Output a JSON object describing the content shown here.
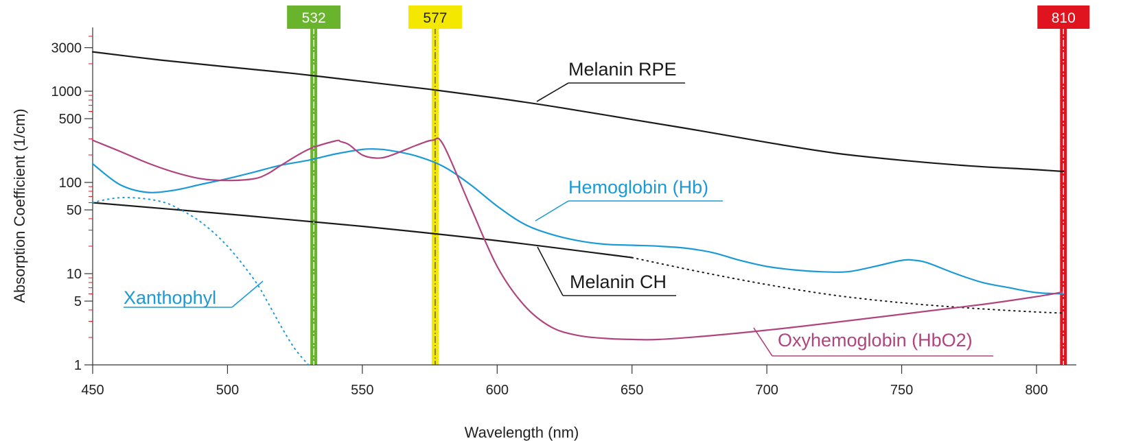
{
  "chart_data": {
    "type": "line",
    "xlabel": "Wavelength (nm)",
    "ylabel": "Absorption Coefficient (1/cm)",
    "x_scale": "linear",
    "y_scale": "log",
    "xlim": [
      450,
      810
    ],
    "ylim": [
      1,
      4500
    ],
    "x_ticks": [
      450,
      500,
      550,
      600,
      650,
      700,
      750,
      800
    ],
    "y_ticks": [
      1,
      5,
      10,
      50,
      100,
      500,
      1000,
      3000
    ],
    "grid": false,
    "series": [
      {
        "name": "Melanin RPE",
        "color": "#1a1a1a",
        "style": "solid",
        "x": [
          450,
          475,
          500,
          525,
          550,
          575,
          600,
          625,
          650,
          675,
          700,
          725,
          750,
          775,
          800,
          810
        ],
        "y": [
          2700,
          2200,
          1850,
          1560,
          1280,
          1050,
          840,
          650,
          490,
          370,
          275,
          210,
          175,
          152,
          138,
          132
        ]
      },
      {
        "name": "Melanin CH",
        "color": "#1a1a1a",
        "style": "solid",
        "x": [
          450,
          500,
          550,
          600,
          650
        ],
        "y": [
          60,
          45,
          33,
          23,
          15
        ]
      },
      {
        "name": "",
        "color": "#1a1a1a",
        "style": "dotted",
        "x": [
          650,
          675,
          700,
          725,
          750,
          775,
          800,
          810
        ],
        "y": [
          15,
          10.5,
          7.6,
          5.8,
          4.8,
          4.2,
          3.8,
          3.7
        ]
      },
      {
        "name": "Hemoglobin (Hb)",
        "color": "#1b9ad6",
        "style": "solid",
        "x": [
          450,
          460,
          470,
          480,
          490,
          500,
          510,
          520,
          530,
          540,
          550,
          555,
          560,
          570,
          580,
          590,
          600,
          610,
          620,
          630,
          640,
          650,
          660,
          670,
          680,
          690,
          700,
          710,
          720,
          730,
          740,
          750,
          755,
          760,
          770,
          780,
          790,
          800,
          810
        ],
        "y": [
          160,
          95,
          78,
          82,
          95,
          110,
          130,
          155,
          175,
          205,
          230,
          232,
          225,
          195,
          150,
          95,
          55,
          35,
          27,
          23,
          21,
          20.5,
          20,
          19,
          17,
          14,
          12,
          11,
          10.5,
          10.5,
          12,
          14,
          14,
          13,
          10,
          8,
          7,
          6.2,
          6
        ]
      },
      {
        "name": "Oxyhemoglobin (HbO2)",
        "color": "#b0447e",
        "style": "solid",
        "x": [
          450,
          460,
          470,
          480,
          490,
          500,
          510,
          515,
          520,
          530,
          540,
          542,
          545,
          550,
          555,
          560,
          570,
          576,
          580,
          590,
          600,
          610,
          620,
          630,
          640,
          650,
          660,
          680,
          700,
          720,
          740,
          760,
          780,
          800,
          810
        ],
        "y": [
          290,
          220,
          165,
          130,
          110,
          105,
          110,
          125,
          155,
          230,
          285,
          280,
          260,
          200,
          185,
          195,
          255,
          290,
          260,
          55,
          12,
          4.5,
          2.6,
          2.1,
          1.95,
          1.9,
          1.9,
          2.1,
          2.4,
          2.8,
          3.3,
          3.9,
          4.6,
          5.6,
          6.3
        ]
      },
      {
        "name": "Xanthophyl",
        "color": "#1b9ad6",
        "style": "dotted",
        "x": [
          450,
          455,
          460,
          465,
          470,
          475,
          480,
          490,
          500,
          510,
          515,
          520,
          525,
          530
        ],
        "y": [
          60,
          65,
          68,
          68,
          66,
          62,
          55,
          37,
          20,
          8.5,
          4.8,
          2.6,
          1.5,
          1
        ]
      }
    ],
    "annotations": [
      {
        "text": "Melanin RPE",
        "color": "#1a1a1a"
      },
      {
        "text": "Hemoglobin (Hb)",
        "color": "#1b9ad6"
      },
      {
        "text": "Melanin CH",
        "color": "#1a1a1a"
      },
      {
        "text": "Xanthophyl",
        "color": "#1b9ad6"
      },
      {
        "text": "Oxyhemoglobin (HbO2)",
        "color": "#b0447e"
      }
    ],
    "laser_lines": [
      {
        "wavelength": 532,
        "label": "532",
        "color": "#6ab42d",
        "label_text_color": "#ffffff"
      },
      {
        "wavelength": 577,
        "label": "577",
        "color": "#f5e800",
        "label_text_color": "#222222"
      },
      {
        "wavelength": 810,
        "label": "810",
        "color": "#e0141e",
        "label_text_color": "#ffffff"
      }
    ]
  }
}
